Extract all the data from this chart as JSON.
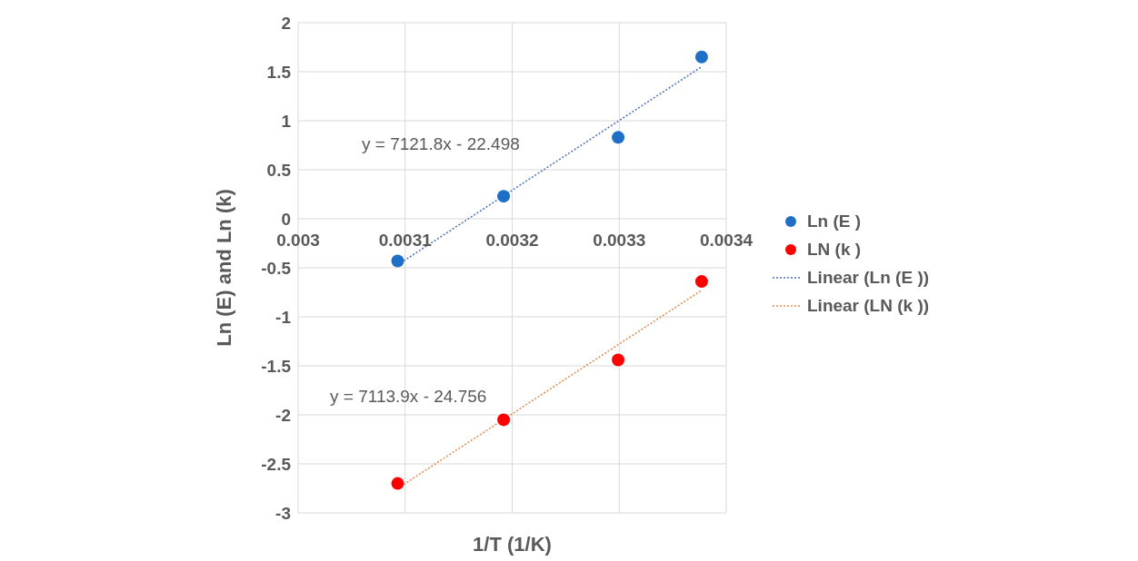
{
  "chart_data": {
    "type": "scatter",
    "xlabel": "1/T (1/K)",
    "ylabel": "Ln (E) and Ln (k)",
    "xlim": [
      0.003,
      0.0034
    ],
    "xticks": [
      0.003,
      0.0031,
      0.0032,
      0.0033,
      0.0034
    ],
    "ylim": [
      -3,
      2
    ],
    "yticks": [
      -3,
      -2.5,
      -2,
      -1.5,
      -1,
      -0.5,
      0,
      0.5,
      1,
      1.5,
      2
    ],
    "grid": true,
    "legend": "right",
    "series": [
      {
        "name": "Ln (E )",
        "marker": "circle",
        "color": "#1f6fc6",
        "x": [
          0.003093,
          0.003192,
          0.003299,
          0.003377
        ],
        "values": [
          -0.43,
          0.23,
          0.83,
          1.65
        ]
      },
      {
        "name": "LN (k )",
        "marker": "circle",
        "color": "#ff0000",
        "x": [
          0.003093,
          0.003192,
          0.003299,
          0.003377
        ],
        "values": [
          -2.7,
          -2.05,
          -1.44,
          -0.64
        ]
      },
      {
        "name": "Linear (Ln (E ))",
        "type": "line",
        "marker": "none",
        "line_style": "dotted",
        "color": "#4a6fb5",
        "x": [
          0.003093,
          0.003377
        ],
        "values": [
          -0.47,
          1.55
        ]
      },
      {
        "name": "Linear (LN (k ))",
        "type": "line",
        "marker": "none",
        "line_style": "dotted",
        "color": "#e08a4a",
        "x": [
          0.003093,
          0.003377
        ],
        "values": [
          -2.75,
          -0.73
        ]
      }
    ],
    "annotations": [
      "y = 7121.8x - 22.498",
      "y = 7113.9x - 24.756"
    ]
  }
}
